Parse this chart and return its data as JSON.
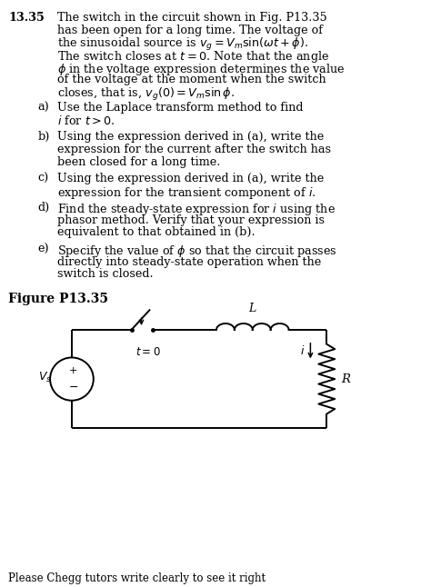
{
  "background_color": "#ffffff",
  "text_color": "#000000",
  "fig_width": 4.74,
  "fig_height": 6.46,
  "dpi": 100,
  "problem_number": "13.35",
  "main_lines": [
    "The switch in the circuit shown in Fig. P13.35",
    "has been open for a long time. The voltage of",
    "the sinusoidal source is $v_g = V_m\\sin(\\omega t + \\phi)$.",
    "The switch closes at $t = 0$. Note that the angle",
    "$\\phi$ in the voltage expression determines the value",
    "of the voltage at the moment when the switch",
    "closes, that is, $v_g(0) = V_m\\sin\\phi$."
  ],
  "parts": [
    {
      "label": "a)",
      "lines": [
        "Use the Laplace transform method to find",
        "$i$ for $t > 0$."
      ]
    },
    {
      "label": "b)",
      "lines": [
        "Using the expression derived in (a), write the",
        "expression for the current after the switch has",
        "been closed for a long time."
      ]
    },
    {
      "label": "c)",
      "lines": [
        "Using the expression derived in (a), write the",
        "expression for the transient component of $i$."
      ]
    },
    {
      "label": "d)",
      "lines": [
        "Find the steady-state expression for $i$ using the",
        "phasor method. Verify that your expression is",
        "equivalent to that obtained in (b)."
      ]
    },
    {
      "label": "e)",
      "lines": [
        "Specify the value of $\\phi$ so that the circuit passes",
        "directly into steady-state operation when the",
        "switch is closed."
      ]
    }
  ],
  "figure_label": "Figure P13.35",
  "footer": "Please Chegg tutors write clearly to see it right"
}
